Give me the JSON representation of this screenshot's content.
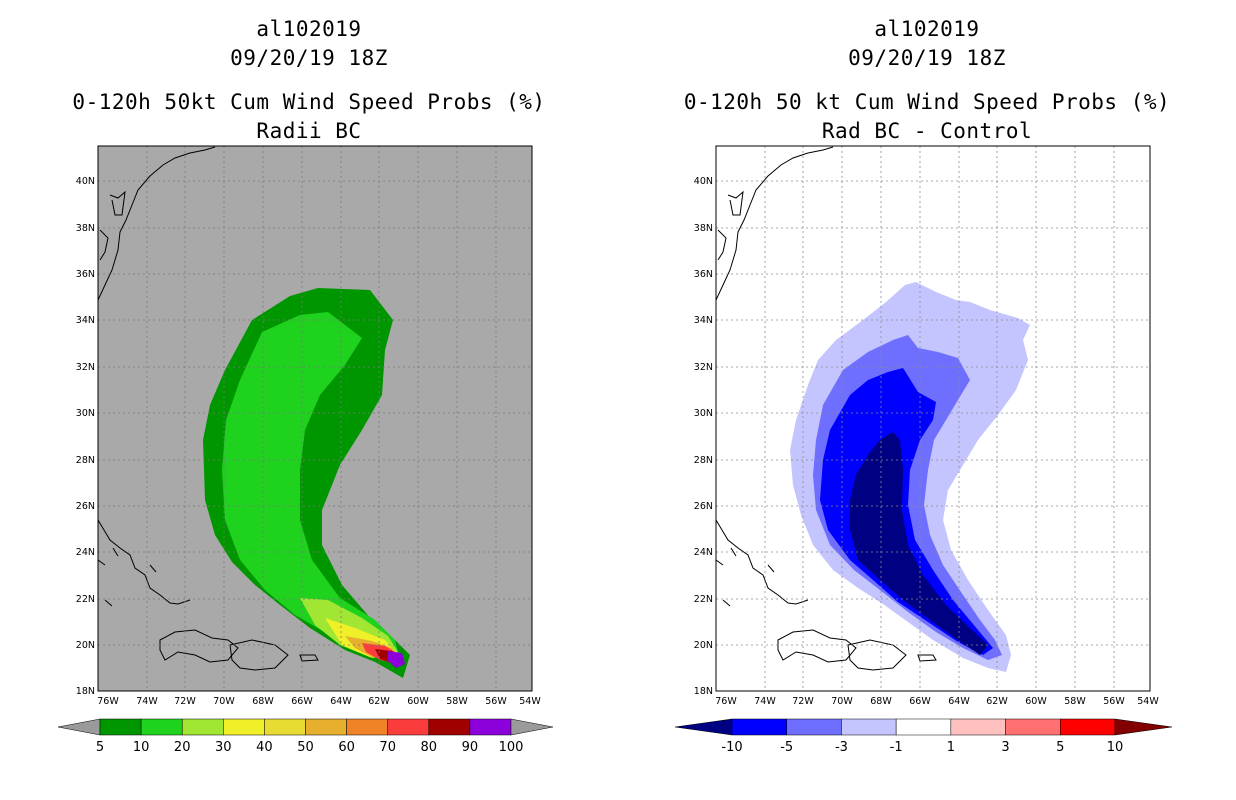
{
  "left": {
    "storm_id": "al102019",
    "datetime": "09/20/19 18Z",
    "product": "0-120h 50kt Cum Wind Speed Probs (%)",
    "subtitle": "Radii BC",
    "lat_labels": [
      "18N",
      "20N",
      "22N",
      "24N",
      "26N",
      "28N",
      "30N",
      "32N",
      "34N",
      "36N",
      "38N",
      "40N"
    ],
    "lon_labels": [
      "76W",
      "74W",
      "72W",
      "70W",
      "68W",
      "66W",
      "64W",
      "62W",
      "60W",
      "58W",
      "56W",
      "54W"
    ],
    "colorbar": {
      "labels": [
        "5",
        "10",
        "20",
        "30",
        "40",
        "50",
        "60",
        "70",
        "80",
        "90",
        "100"
      ],
      "colors": [
        "#009600",
        "#1ed21e",
        "#a0e632",
        "#f0f028",
        "#e6dc32",
        "#e6af2d",
        "#f08228",
        "#fa3c3c",
        "#a00000",
        "#8c00dc"
      ],
      "under_color": "#9a9a9a",
      "over_color": "#9a9a9a"
    },
    "background_color": "#a9a9a9"
  },
  "right": {
    "storm_id": "al102019",
    "datetime": "09/20/19 18Z",
    "product": "0-120h 50 kt Cum Wind Speed Probs (%)",
    "subtitle": "Rad BC - Control",
    "lat_labels": [
      "18N",
      "20N",
      "22N",
      "24N",
      "26N",
      "28N",
      "30N",
      "32N",
      "34N",
      "36N",
      "38N",
      "40N"
    ],
    "lon_labels": [
      "76W",
      "74W",
      "72W",
      "70W",
      "68W",
      "66W",
      "64W",
      "62W",
      "60W",
      "58W",
      "56W",
      "54W"
    ],
    "colorbar": {
      "labels": [
        "-10",
        "-5",
        "-3",
        "-1",
        "1",
        "3",
        "5",
        "10"
      ],
      "colors": [
        "#0000ff",
        "#6e6eff",
        "#c4c4ff",
        "#ffffff",
        "#ffc0c0",
        "#ff7070",
        "#ff0000"
      ],
      "under_color": "#000082",
      "over_color": "#820000"
    },
    "background_color": "#ffffff"
  }
}
